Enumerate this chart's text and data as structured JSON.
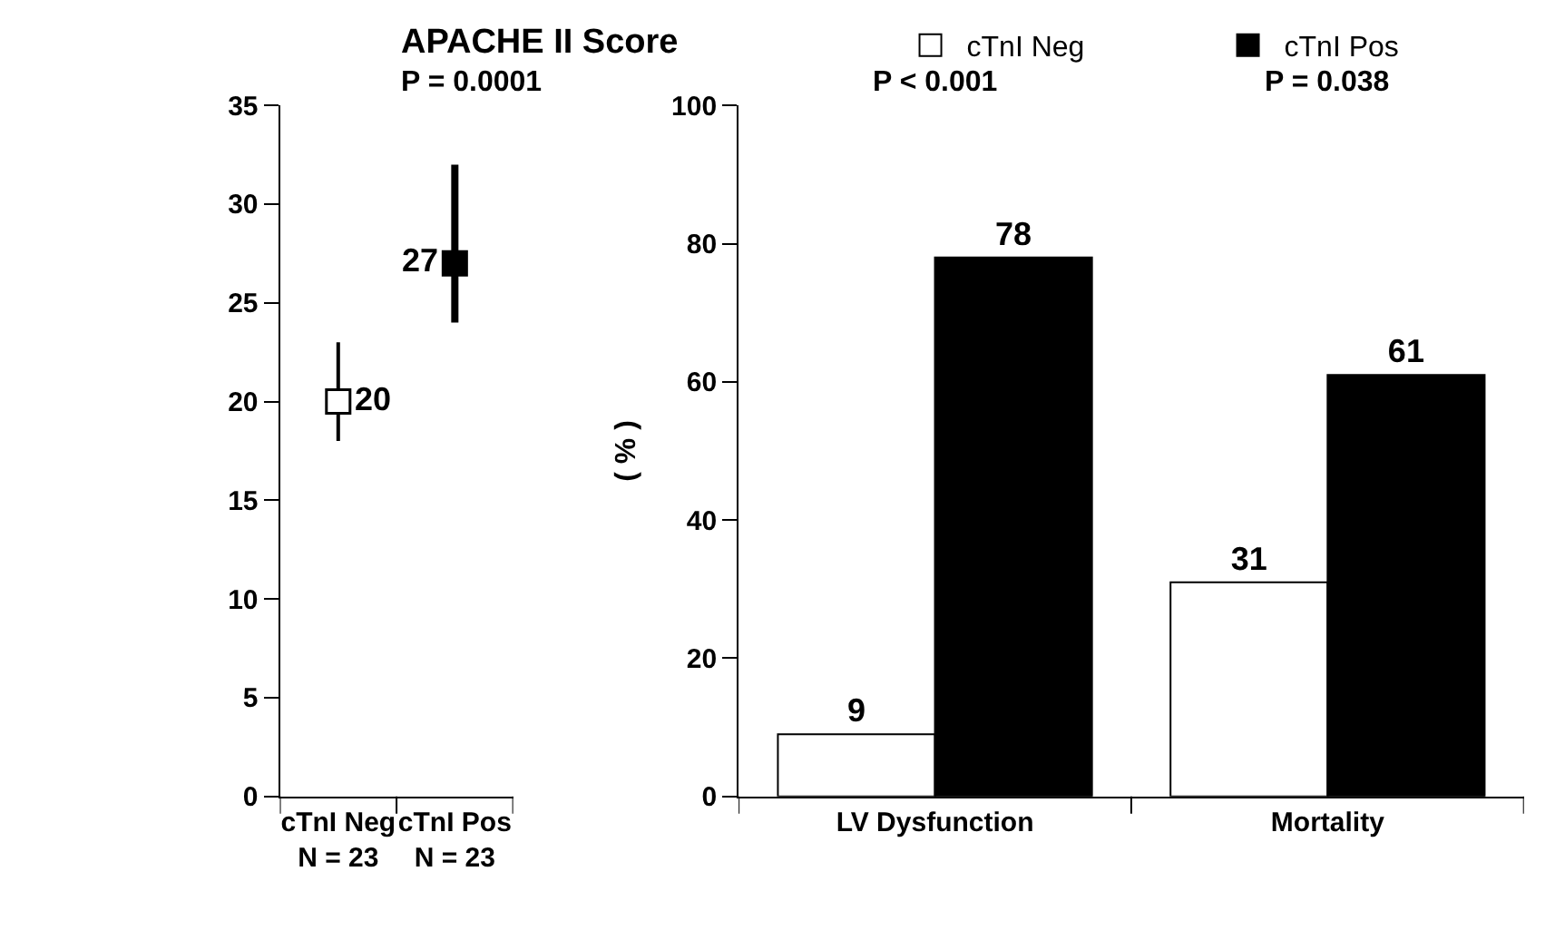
{
  "chart_data": [
    {
      "type": "scatter",
      "title": "APACHE II Score",
      "annotations": [
        "P = 0.0001"
      ],
      "categories": [
        "cTnI Neg\nN = 23",
        "cTnI Pos\nN = 23"
      ],
      "values": [
        20,
        27
      ],
      "colors": [
        "#ffffff",
        "#000000"
      ],
      "errors": [
        [
          18,
          23
        ],
        [
          24,
          32
        ]
      ],
      "marker": "square",
      "data_labels": true,
      "ylim": [
        0,
        35
      ],
      "yticks": [
        0,
        5,
        10,
        15,
        20,
        25,
        30,
        35
      ],
      "legend": false
    },
    {
      "type": "bar",
      "ylabel": "( % )",
      "annotations": [
        "P < 0.001",
        "P = 0.038"
      ],
      "categories": [
        "LV Dysfunction",
        "Mortality"
      ],
      "series": [
        {
          "name": "cTnI Neg",
          "color": "#ffffff",
          "values": [
            9,
            31
          ]
        },
        {
          "name": "cTnI Pos",
          "color": "#000000",
          "values": [
            78,
            61
          ]
        }
      ],
      "data_labels": true,
      "ylim": [
        0,
        100
      ],
      "yticks": [
        0,
        20,
        40,
        60,
        80,
        100
      ],
      "legend": "top"
    }
  ]
}
